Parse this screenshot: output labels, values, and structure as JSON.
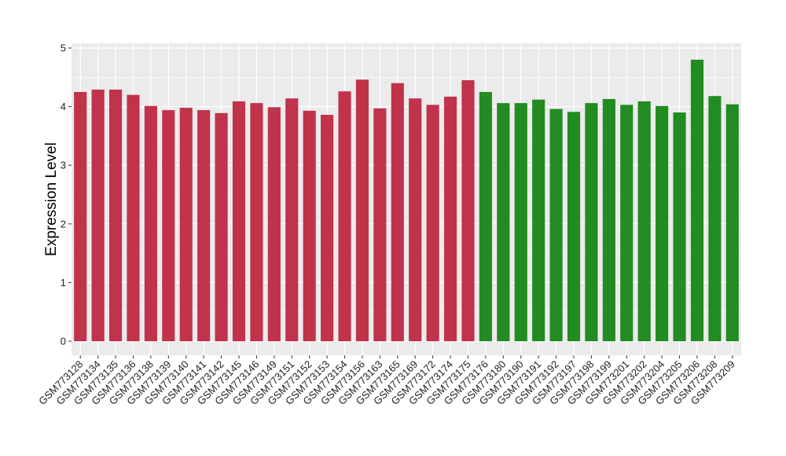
{
  "chart_data": {
    "type": "bar",
    "title": "",
    "xlabel": "",
    "ylabel": "Expression Level",
    "ylim": [
      0,
      5
    ],
    "yticks": [
      0,
      1,
      2,
      3,
      4,
      5
    ],
    "grid": true,
    "legend": "none",
    "colors": {
      "group1": "#C0334A",
      "group2": "#228B22",
      "panel": "#EBEBEB",
      "grid": "#FFFFFF"
    },
    "categories": [
      "GSM773128",
      "GSM773134",
      "GSM773135",
      "GSM773136",
      "GSM773138",
      "GSM773139",
      "GSM773140",
      "GSM773141",
      "GSM773142",
      "GSM773145",
      "GSM773146",
      "GSM773149",
      "GSM773151",
      "GSM773152",
      "GSM773153",
      "GSM773154",
      "GSM773156",
      "GSM773163",
      "GSM773165",
      "GSM773169",
      "GSM773172",
      "GSM773174",
      "GSM773175",
      "GSM773176",
      "GSM773180",
      "GSM773190",
      "GSM773191",
      "GSM773192",
      "GSM773197",
      "GSM773198",
      "GSM773199",
      "GSM773201",
      "GSM773202",
      "GSM773204",
      "GSM773205",
      "GSM773206",
      "GSM773208",
      "GSM773209"
    ],
    "values": [
      4.25,
      4.29,
      4.29,
      4.2,
      4.01,
      3.94,
      3.98,
      3.94,
      3.89,
      4.09,
      4.06,
      3.99,
      4.14,
      3.93,
      3.86,
      4.26,
      4.46,
      3.97,
      4.4,
      4.14,
      4.03,
      4.17,
      4.45,
      4.25,
      4.06,
      4.06,
      4.12,
      3.96,
      3.91,
      4.06,
      4.13,
      4.03,
      4.09,
      4.01,
      3.9,
      4.8,
      4.18,
      4.04
    ],
    "groups": [
      1,
      1,
      1,
      1,
      1,
      1,
      1,
      1,
      1,
      1,
      1,
      1,
      1,
      1,
      1,
      1,
      1,
      1,
      1,
      1,
      1,
      1,
      1,
      2,
      2,
      2,
      2,
      2,
      2,
      2,
      2,
      2,
      2,
      2,
      2,
      2,
      2,
      2
    ]
  }
}
